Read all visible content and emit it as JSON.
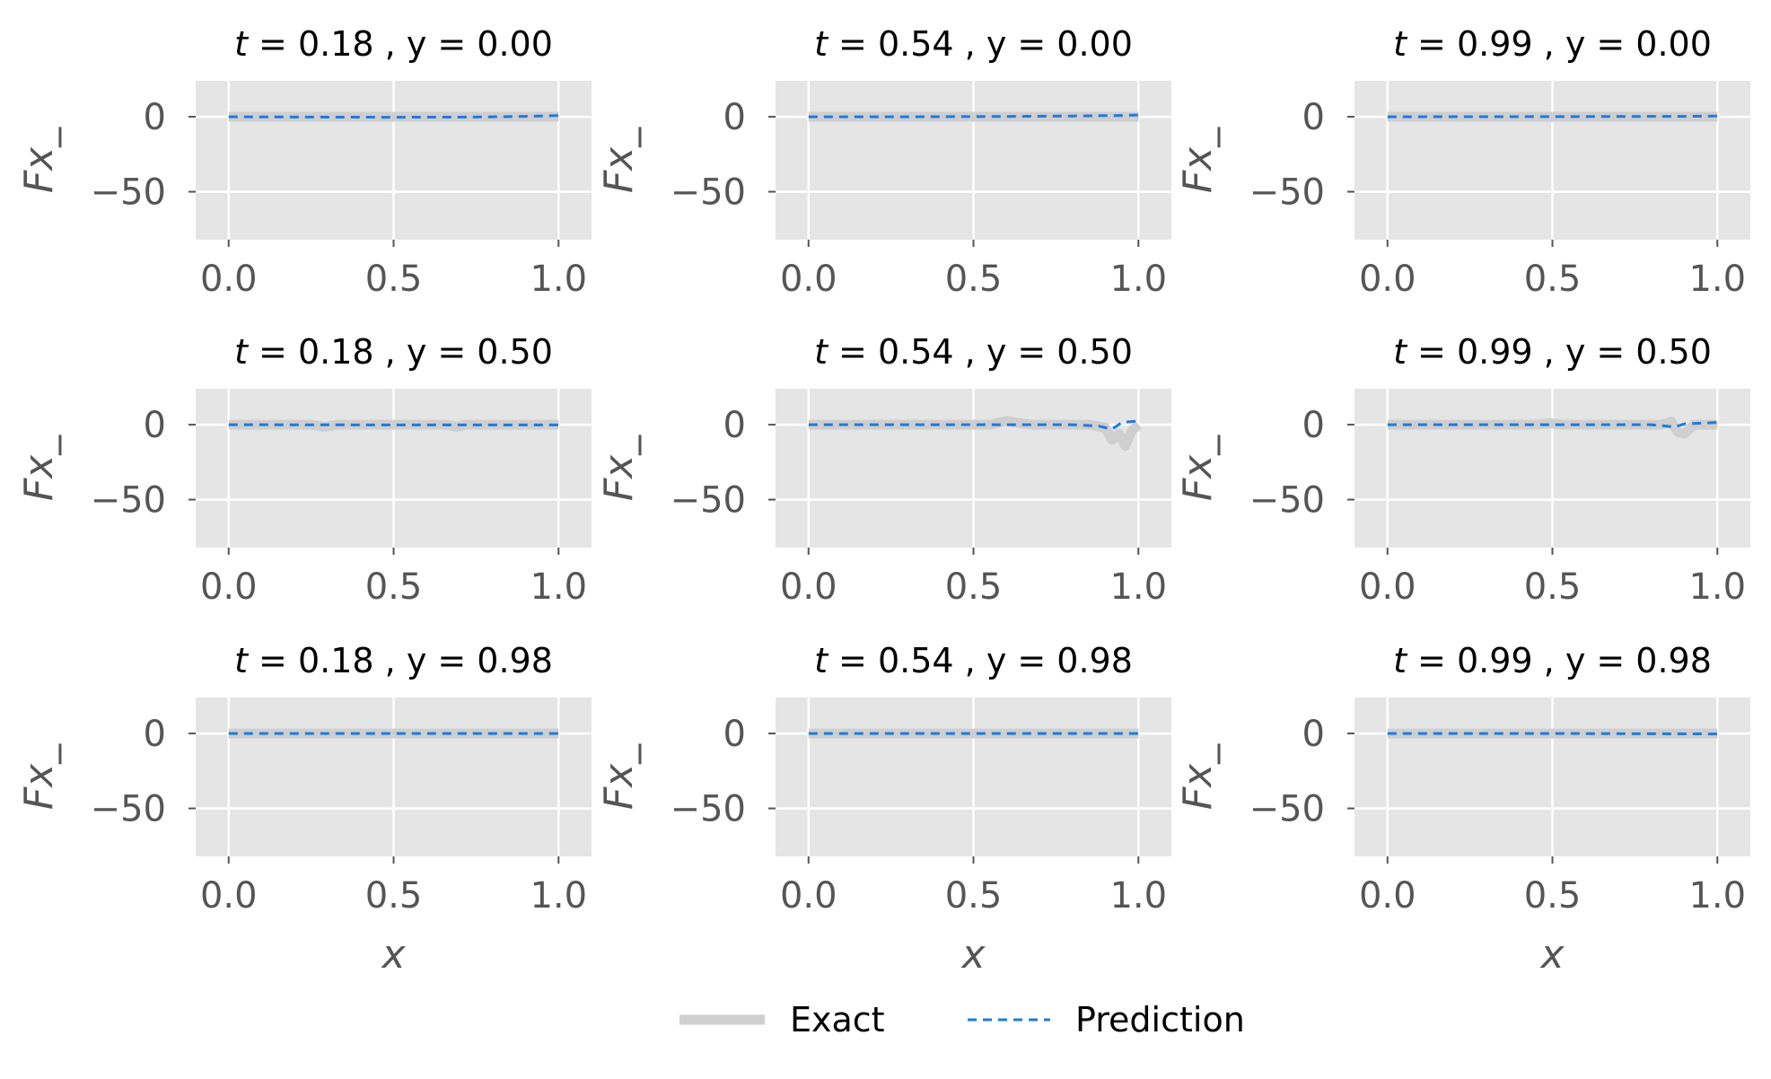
{
  "figure": {
    "x_label": "x",
    "y_label": "Fx_"
  },
  "legend": {
    "exact_label": "Exact",
    "prediction_label": "Prediction"
  },
  "colors": {
    "panel_background": "#e5e5e5",
    "grid": "#ffffff",
    "exact": "#cfcfcf",
    "prediction": "#1f7ae0",
    "tick_text": "#555555"
  },
  "chart_data": [
    {
      "type": "line",
      "title": "t = 0.18 , y =  0.00",
      "t_label": "t",
      "title_rest": " = 0.18 , y =  0.00",
      "xlabel": "",
      "ylabel": "Fx_",
      "xlim": [
        -0.1,
        1.1
      ],
      "ylim": [
        -82,
        24
      ],
      "xticks": [
        "0.0",
        "0.5",
        "1.0"
      ],
      "yticks": [
        "0",
        "−50"
      ],
      "grid": true,
      "series": [
        {
          "name": "Exact",
          "x": [
            0,
            0.5,
            1.0
          ],
          "y": [
            0,
            0,
            0
          ]
        },
        {
          "name": "Prediction",
          "x": [
            0,
            0.25,
            0.5,
            0.75,
            0.9,
            1.0
          ],
          "y": [
            0,
            -0.2,
            -0.3,
            -0.2,
            0.3,
            0.8
          ]
        }
      ]
    },
    {
      "type": "line",
      "title": "t = 0.54 , y =  0.00",
      "t_label": "t",
      "title_rest": " = 0.54 , y =  0.00",
      "xlabel": "",
      "ylabel": "Fx_",
      "xlim": [
        -0.1,
        1.1
      ],
      "ylim": [
        -82,
        24
      ],
      "xticks": [
        "0.0",
        "0.5",
        "1.0"
      ],
      "yticks": [
        "0",
        "−50"
      ],
      "grid": true,
      "series": [
        {
          "name": "Exact",
          "x": [
            0,
            0.5,
            1.0
          ],
          "y": [
            0,
            0,
            0
          ]
        },
        {
          "name": "Prediction",
          "x": [
            0,
            0.3,
            0.6,
            0.8,
            0.95,
            1.0
          ],
          "y": [
            0,
            0,
            0.2,
            0.5,
            0.9,
            1.2
          ]
        }
      ]
    },
    {
      "type": "line",
      "title": "t = 0.99 , y =  0.00",
      "t_label": "t",
      "title_rest": " = 0.99 , y =  0.00",
      "xlabel": "",
      "ylabel": "Fx_",
      "xlim": [
        -0.1,
        1.1
      ],
      "ylim": [
        -82,
        24
      ],
      "xticks": [
        "0.0",
        "0.5",
        "1.0"
      ],
      "yticks": [
        "0",
        "−50"
      ],
      "grid": true,
      "series": [
        {
          "name": "Exact",
          "x": [
            0,
            0.5,
            1.0
          ],
          "y": [
            0,
            0,
            0
          ]
        },
        {
          "name": "Prediction",
          "x": [
            0,
            0.5,
            0.9,
            1.0
          ],
          "y": [
            0,
            0.1,
            0.3,
            0.5
          ]
        }
      ]
    },
    {
      "type": "line",
      "title": "t = 0.18 , y =  0.50",
      "t_label": "t",
      "title_rest": " = 0.18 , y =  0.50",
      "xlabel": "",
      "ylabel": "Fx_",
      "xlim": [
        -0.1,
        1.1
      ],
      "ylim": [
        -82,
        24
      ],
      "xticks": [
        "0.0",
        "0.5",
        "1.0"
      ],
      "yticks": [
        "0",
        "−50"
      ],
      "grid": true,
      "series": [
        {
          "name": "Exact",
          "x": [
            0,
            0.25,
            0.29,
            0.33,
            0.6,
            0.66,
            0.69,
            0.72,
            1.0
          ],
          "y": [
            0,
            0,
            -1.5,
            0,
            0,
            0,
            -1.5,
            0,
            0
          ]
        },
        {
          "name": "Prediction",
          "x": [
            0,
            0.5,
            1.0
          ],
          "y": [
            0,
            -0.2,
            -0.2
          ]
        }
      ]
    },
    {
      "type": "line",
      "title": "t = 0.54 , y =  0.50",
      "t_label": "t",
      "title_rest": " = 0.54 , y =  0.50",
      "xlabel": "",
      "ylabel": "Fx_",
      "xlim": [
        -0.1,
        1.1
      ],
      "ylim": [
        -82,
        24
      ],
      "xticks": [
        "0.0",
        "0.5",
        "1.0"
      ],
      "yticks": [
        "0",
        "−50"
      ],
      "grid": true,
      "series": [
        {
          "name": "Exact",
          "x": [
            0,
            0.55,
            0.6,
            0.64,
            0.68,
            0.85,
            0.9,
            0.92,
            0.94,
            0.96,
            0.98,
            1.0
          ],
          "y": [
            0,
            0,
            2.5,
            1,
            0,
            0,
            -2,
            -10,
            -6,
            -14,
            -4,
            0
          ]
        },
        {
          "name": "Prediction",
          "x": [
            0,
            0.6,
            0.8,
            0.88,
            0.92,
            0.95,
            1.0
          ],
          "y": [
            0,
            0,
            0,
            -1,
            -3,
            1.5,
            2.5
          ]
        }
      ]
    },
    {
      "type": "line",
      "title": "t = 0.99 , y =  0.50",
      "t_label": "t",
      "title_rest": " = 0.99 , y =  0.50",
      "xlabel": "",
      "ylabel": "Fx_",
      "xlim": [
        -0.1,
        1.1
      ],
      "ylim": [
        -82,
        24
      ],
      "xticks": [
        "0.0",
        "0.5",
        "1.0"
      ],
      "yticks": [
        "0",
        "−50"
      ],
      "grid": true,
      "series": [
        {
          "name": "Exact",
          "x": [
            0,
            0.45,
            0.49,
            0.53,
            0.83,
            0.86,
            0.88,
            0.9,
            0.93,
            1.0
          ],
          "y": [
            0,
            0,
            1,
            0,
            0,
            2,
            -5,
            -6,
            0,
            0
          ]
        },
        {
          "name": "Prediction",
          "x": [
            0,
            0.8,
            0.87,
            0.9,
            1.0
          ],
          "y": [
            0,
            0,
            -1.5,
            0.5,
            1.5
          ]
        }
      ]
    },
    {
      "type": "line",
      "title": "t = 0.18 , y =  0.98",
      "t_label": "t",
      "title_rest": " = 0.18 , y =  0.98",
      "xlabel": "x",
      "ylabel": "Fx_",
      "xlim": [
        -0.1,
        1.1
      ],
      "ylim": [
        -82,
        24
      ],
      "xticks": [
        "0.0",
        "0.5",
        "1.0"
      ],
      "yticks": [
        "0",
        "−50"
      ],
      "grid": true,
      "series": [
        {
          "name": "Exact",
          "x": [
            0,
            0.5,
            1.0
          ],
          "y": [
            0,
            0,
            0
          ]
        },
        {
          "name": "Prediction",
          "x": [
            0,
            0.5,
            1.0
          ],
          "y": [
            0,
            0,
            0
          ]
        }
      ]
    },
    {
      "type": "line",
      "title": "t = 0.54 , y =  0.98",
      "t_label": "t",
      "title_rest": " = 0.54 , y =  0.98",
      "xlabel": "x",
      "ylabel": "Fx_",
      "xlim": [
        -0.1,
        1.1
      ],
      "ylim": [
        -82,
        24
      ],
      "xticks": [
        "0.0",
        "0.5",
        "1.0"
      ],
      "yticks": [
        "0",
        "−50"
      ],
      "grid": true,
      "series": [
        {
          "name": "Exact",
          "x": [
            0,
            0.5,
            1.0
          ],
          "y": [
            0,
            0,
            0
          ]
        },
        {
          "name": "Prediction",
          "x": [
            0,
            0.5,
            1.0
          ],
          "y": [
            0,
            0,
            0
          ]
        }
      ]
    },
    {
      "type": "line",
      "title": "t = 0.99 , y =  0.98",
      "t_label": "t",
      "title_rest": " = 0.99 , y =  0.98",
      "xlabel": "x",
      "ylabel": "Fx_",
      "xlim": [
        -0.1,
        1.1
      ],
      "ylim": [
        -82,
        24
      ],
      "xticks": [
        "0.0",
        "0.5",
        "1.0"
      ],
      "yticks": [
        "0",
        "−50"
      ],
      "grid": true,
      "series": [
        {
          "name": "Exact",
          "x": [
            0,
            0.5,
            1.0
          ],
          "y": [
            0,
            0,
            0
          ]
        },
        {
          "name": "Prediction",
          "x": [
            0,
            0.5,
            1.0
          ],
          "y": [
            0,
            0,
            -0.3
          ]
        }
      ]
    }
  ]
}
